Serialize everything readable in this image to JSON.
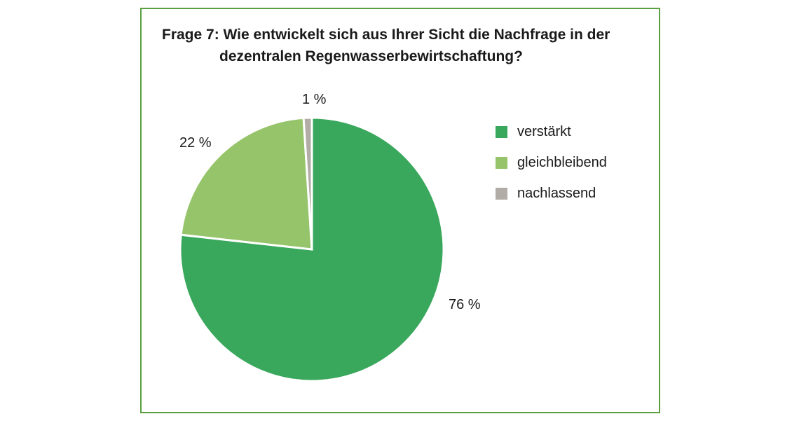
{
  "chart_data": {
    "type": "pie",
    "title_line1": "Frage 7: Wie entwickelt sich aus Ihrer Sicht die Nachfrage in der",
    "title_line2": "dezentralen Regenwasserbewirtschaftung?",
    "legend_position": "right",
    "slices": [
      {
        "name": "verstärkt",
        "value": 76,
        "label": "76 %",
        "color": "#3aa85c"
      },
      {
        "name": "gleichbleibend",
        "value": 22,
        "label": "22 %",
        "color": "#95c46a"
      },
      {
        "name": "nachlassend",
        "value": 1,
        "label": "1 %",
        "color": "#b2aca6"
      }
    ]
  }
}
